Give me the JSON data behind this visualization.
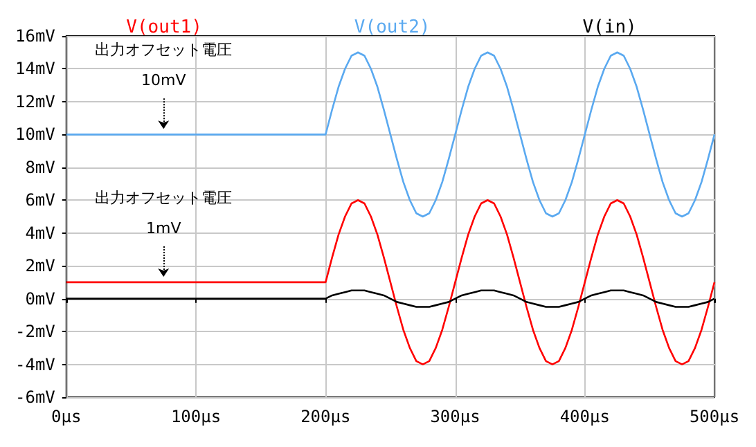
{
  "chart_data": {
    "type": "line",
    "x": [
      0,
      200,
      205,
      210,
      215,
      220,
      225,
      230,
      235,
      240,
      245,
      250,
      255,
      260,
      265,
      270,
      275,
      280,
      285,
      290,
      295,
      300,
      305,
      310,
      315,
      320,
      325,
      330,
      335,
      340,
      345,
      350,
      355,
      360,
      365,
      370,
      375,
      380,
      385,
      390,
      395,
      400,
      405,
      410,
      415,
      420,
      425,
      430,
      435,
      440,
      445,
      450,
      455,
      460,
      465,
      470,
      475,
      480,
      485,
      490,
      495,
      500
    ],
    "series": [
      {
        "name": "V(out1)",
        "color": "#ff0000",
        "values": [
          1,
          1,
          2.5,
          3.9,
          5,
          5.8,
          6,
          5.8,
          5,
          3.9,
          2.5,
          1,
          -0.5,
          -1.9,
          -3,
          -3.8,
          -4,
          -3.8,
          -3,
          -1.9,
          -0.5,
          1,
          2.5,
          3.9,
          5,
          5.8,
          6,
          5.8,
          5,
          3.9,
          2.5,
          1,
          -0.5,
          -1.9,
          -3,
          -3.8,
          -4,
          -3.8,
          -3,
          -1.9,
          -0.5,
          1,
          2.5,
          3.9,
          5,
          5.8,
          6,
          5.8,
          5,
          3.9,
          2.5,
          1,
          -0.5,
          -1.9,
          -3,
          -3.8,
          -4,
          -3.8,
          -3,
          -1.9,
          -0.5,
          1
        ]
      },
      {
        "name": "V(out2)",
        "color": "#5aa9f0",
        "values": [
          10,
          10,
          11.5,
          12.9,
          14,
          14.8,
          15,
          14.8,
          14,
          12.9,
          11.5,
          10,
          8.5,
          7.1,
          6,
          5.2,
          5,
          5.2,
          6,
          7.1,
          8.5,
          10,
          11.5,
          12.9,
          14,
          14.8,
          15,
          14.8,
          14,
          12.9,
          11.5,
          10,
          8.5,
          7.1,
          6,
          5.2,
          5,
          5.2,
          6,
          7.1,
          8.5,
          10,
          11.5,
          12.9,
          14,
          14.8,
          15,
          14.8,
          14,
          12.9,
          11.5,
          10,
          8.5,
          7.1,
          6,
          5.2,
          5,
          5.2,
          6,
          7.1,
          8.5,
          10
        ]
      },
      {
        "name": "V(in)",
        "color": "#000000",
        "values": [
          0,
          0,
          0.2,
          0.3,
          0.4,
          0.5,
          0.5,
          0.5,
          0.4,
          0.3,
          0.2,
          0,
          -0.2,
          -0.3,
          -0.4,
          -0.5,
          -0.5,
          -0.5,
          -0.4,
          -0.3,
          -0.2,
          0,
          0.2,
          0.3,
          0.4,
          0.5,
          0.5,
          0.5,
          0.4,
          0.3,
          0.2,
          0,
          -0.2,
          -0.3,
          -0.4,
          -0.5,
          -0.5,
          -0.5,
          -0.4,
          -0.3,
          -0.2,
          0,
          0.2,
          0.3,
          0.4,
          0.5,
          0.5,
          0.5,
          0.4,
          0.3,
          0.2,
          0,
          -0.2,
          -0.3,
          -0.4,
          -0.5,
          -0.5,
          -0.5,
          -0.4,
          -0.3,
          -0.2,
          0
        ]
      }
    ],
    "xlim": [
      0,
      500
    ],
    "xticks": [
      {
        "value": 0,
        "label": "0µs"
      },
      {
        "value": 100,
        "label": "100µs"
      },
      {
        "value": 200,
        "label": "200µs"
      },
      {
        "value": 300,
        "label": "300µs"
      },
      {
        "value": 400,
        "label": "400µs"
      },
      {
        "value": 500,
        "label": "500µs"
      }
    ],
    "ylim": [
      -6,
      16
    ],
    "yticks": [
      {
        "value": -6,
        "label": "-6mV"
      },
      {
        "value": -4,
        "label": "-4mV"
      },
      {
        "value": -2,
        "label": "-2mV"
      },
      {
        "value": 0,
        "label": "0mV"
      },
      {
        "value": 2,
        "label": "2mV"
      },
      {
        "value": 4,
        "label": "4mV"
      },
      {
        "value": 6,
        "label": "6mV"
      },
      {
        "value": 8,
        "label": "8mV"
      },
      {
        "value": 10,
        "label": "10mV"
      },
      {
        "value": 12,
        "label": "12mV"
      },
      {
        "value": 14,
        "label": "14mV"
      },
      {
        "value": 16,
        "label": "16mV"
      }
    ],
    "annotations": [
      {
        "text": "出力オフセット電圧\n10mV",
        "x": 75,
        "y": 10
      },
      {
        "text": "出力オフセット電圧\n1mV",
        "x": 75,
        "y": 1
      }
    ],
    "grid": true,
    "legend": "top"
  }
}
